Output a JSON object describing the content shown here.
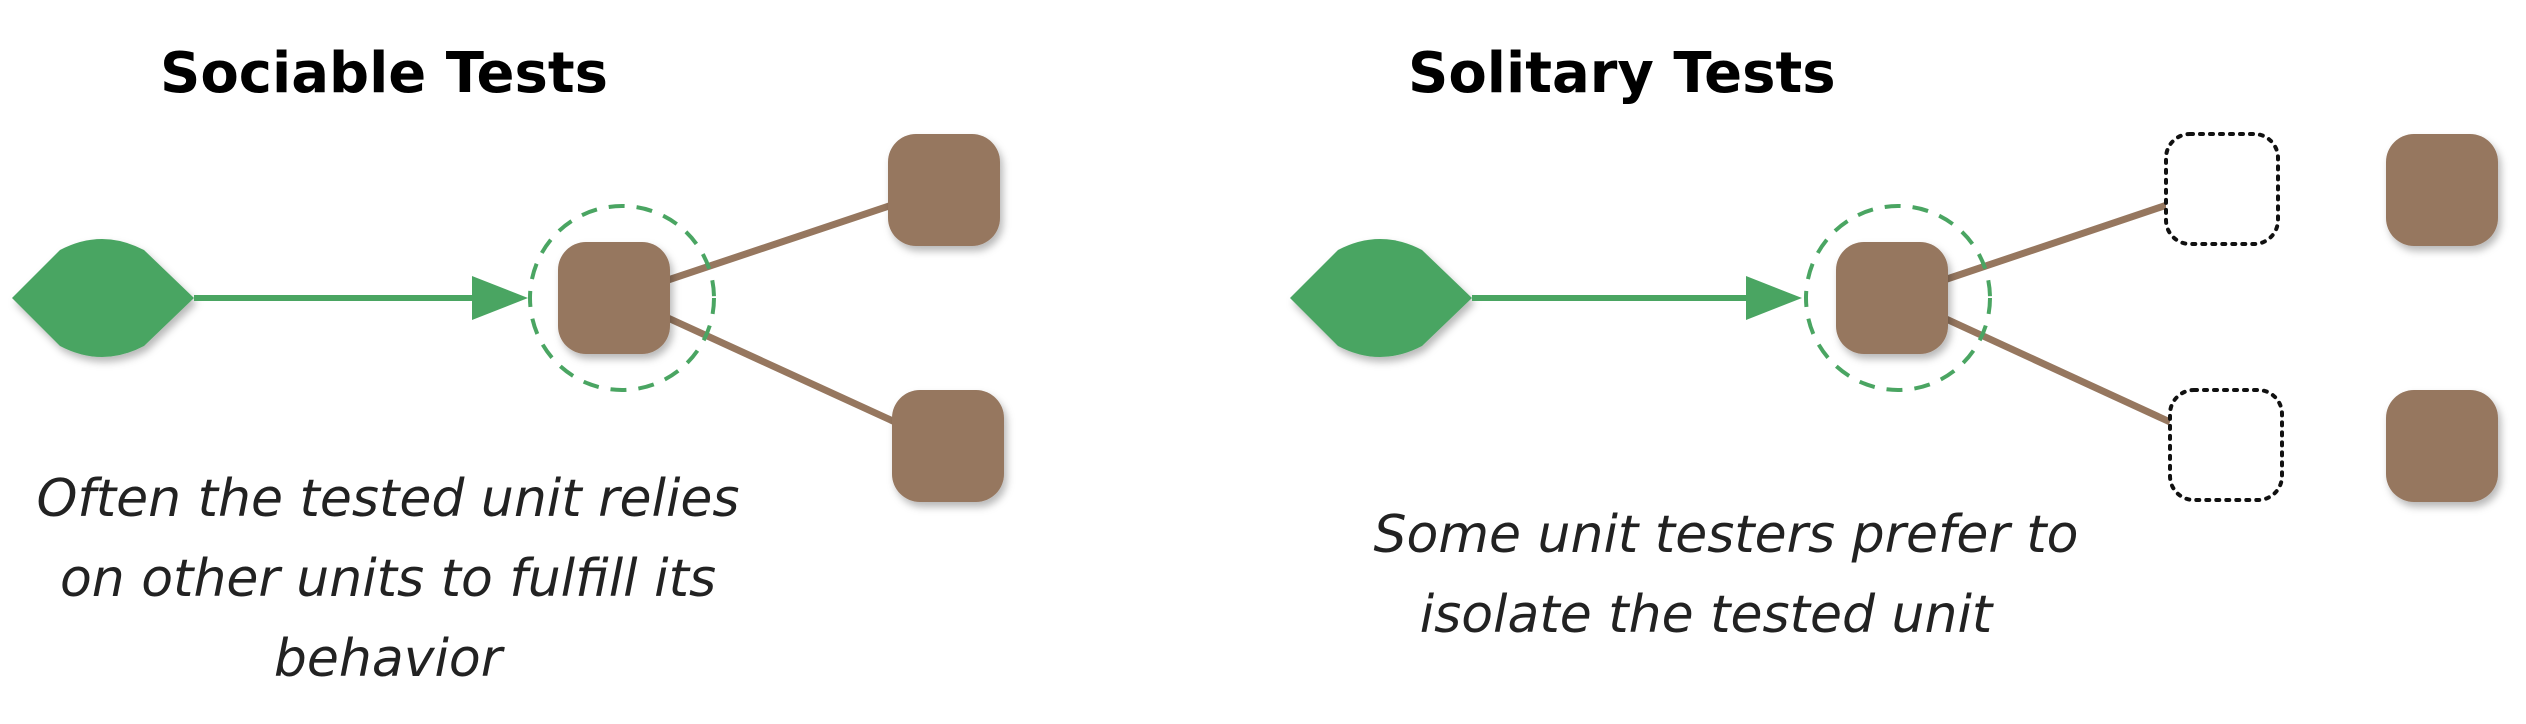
{
  "colors": {
    "green": "#4aa562",
    "brown": "#96775f",
    "shadow": "#00000040",
    "text": "#222222",
    "title": "#000000"
  },
  "left_panel": {
    "title": "Sociable Tests",
    "caption_lines": [
      "Often the tested unit relies",
      "on other units to fulfill its",
      "behavior"
    ]
  },
  "right_panel": {
    "title": "Solitary Tests",
    "caption_lines": [
      "Some unit testers prefer to",
      "isolate the tested unit"
    ]
  }
}
